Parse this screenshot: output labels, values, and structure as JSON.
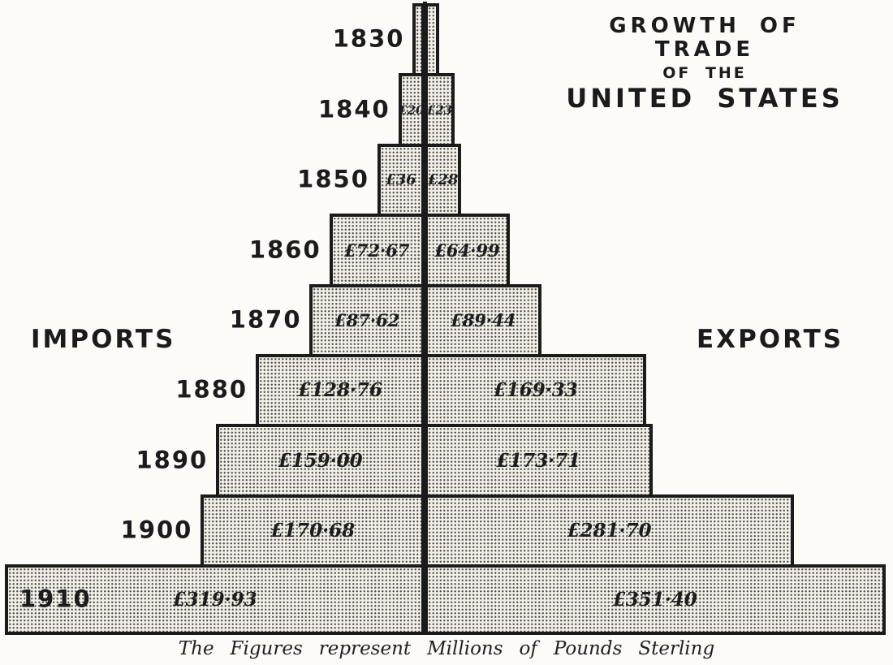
{
  "title": {
    "line1": "GROWTH OF TRADE",
    "line2": "OF THE",
    "line3": "UNITED STATES"
  },
  "side_labels": {
    "left": "IMPORTS",
    "right": "EXPORTS"
  },
  "caption": "The Figures represent Millions of Pounds Sterling",
  "colors": {
    "ink": "#1b1b1b",
    "paper": "#fcfbf8",
    "bar_fill": "#f2efe8"
  },
  "chart_data": {
    "type": "bar",
    "orientation": "horizontal-bidirectional-pyramid",
    "title": "GROWTH OF TRADE OF THE UNITED STATES",
    "unit": "Millions of Pounds Sterling",
    "caption": "The Figures represent Millions of Pounds Sterling",
    "left_side_label": "IMPORTS",
    "right_side_label": "EXPORTS",
    "categories": [
      "1830",
      "1840",
      "1850",
      "1860",
      "1870",
      "1880",
      "1890",
      "1900",
      "1910"
    ],
    "series": [
      {
        "name": "Imports",
        "side": "left",
        "values": [
          9,
          20,
          36,
          72.67,
          87.62,
          128.76,
          159.0,
          170.68,
          319.93
        ],
        "labels": [
          "",
          "£20",
          "£36",
          "£72·67",
          "£87·62",
          "£128·76",
          "£159·00",
          "£170·68",
          "£319·93"
        ]
      },
      {
        "name": "Exports",
        "side": "right",
        "values": [
          11,
          23,
          28,
          64.99,
          89.44,
          169.33,
          173.71,
          281.7,
          351.4
        ],
        "labels": [
          "",
          "£23",
          "£28",
          "£64·99",
          "£89·44",
          "£169·33",
          "£173·71",
          "£281·70",
          "£351·40"
        ]
      }
    ],
    "value_axis_note": "bar lengths proportional to millions of pounds sterling; 1830 bars unlabeled (values estimated)"
  }
}
